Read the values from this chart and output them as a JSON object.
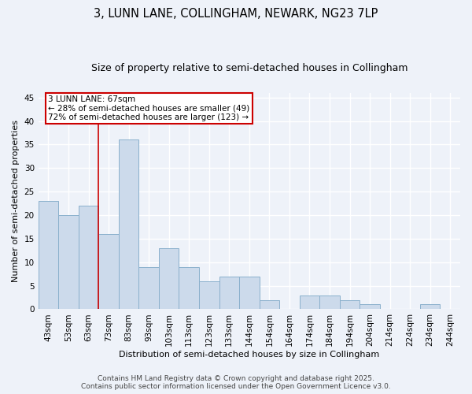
{
  "title": "3, LUNN LANE, COLLINGHAM, NEWARK, NG23 7LP",
  "subtitle": "Size of property relative to semi-detached houses in Collingham",
  "xlabel": "Distribution of semi-detached houses by size in Collingham",
  "ylabel": "Number of semi-detached properties",
  "categories": [
    "43sqm",
    "53sqm",
    "63sqm",
    "73sqm",
    "83sqm",
    "93sqm",
    "103sqm",
    "113sqm",
    "123sqm",
    "133sqm",
    "144sqm",
    "154sqm",
    "164sqm",
    "174sqm",
    "184sqm",
    "194sqm",
    "204sqm",
    "214sqm",
    "224sqm",
    "234sqm",
    "244sqm"
  ],
  "values": [
    23,
    20,
    22,
    16,
    36,
    9,
    13,
    9,
    6,
    7,
    7,
    2,
    0,
    3,
    3,
    2,
    1,
    0,
    0,
    1,
    0
  ],
  "bar_color": "#ccdaeb",
  "bar_edgecolor": "#8ab0cc",
  "background_color": "#eef2f9",
  "grid_color": "#ffffff",
  "red_line_x": 2.5,
  "annotation_title": "3 LUNN LANE: 67sqm",
  "annotation_line1": "← 28% of semi-detached houses are smaller (49)",
  "annotation_line2": "72% of semi-detached houses are larger (123) →",
  "annotation_box_facecolor": "#ffffff",
  "annotation_box_edgecolor": "#cc0000",
  "red_line_color": "#cc0000",
  "ylim": [
    0,
    46
  ],
  "yticks": [
    0,
    5,
    10,
    15,
    20,
    25,
    30,
    35,
    40,
    45
  ],
  "footer_line1": "Contains HM Land Registry data © Crown copyright and database right 2025.",
  "footer_line2": "Contains public sector information licensed under the Open Government Licence v3.0.",
  "title_fontsize": 10.5,
  "subtitle_fontsize": 9,
  "axis_label_fontsize": 8,
  "tick_fontsize": 7.5,
  "annotation_fontsize": 7.5,
  "footer_fontsize": 6.5
}
